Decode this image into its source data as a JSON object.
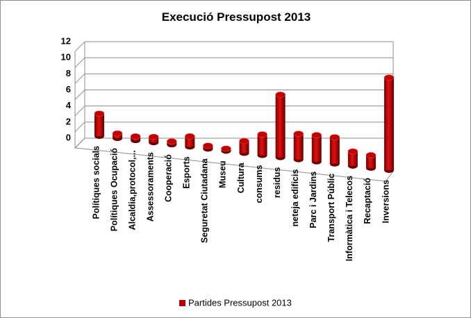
{
  "chart_data": {
    "type": "bar3d",
    "title": "Execució Pressupost 2013",
    "categories": [
      "Polítiques socials",
      "Polítiques Ocupació",
      "Alcaldia,protocol,...",
      "Assessoraments",
      "Cooperació",
      "Esports",
      "Seguretat Ciutadana",
      "Museu",
      "Cultura",
      "consums",
      "residus",
      "neteja edificis",
      "Parc i Jardins",
      "Transport Públic",
      "Informàtica i Telecos",
      "Recaptació",
      "Inversions"
    ],
    "series": [
      {
        "name": "Partides Pressupost 2013",
        "color": "#c00000",
        "values": [
          2.8,
          0.6,
          0.5,
          0.7,
          0.4,
          1.3,
          0.4,
          0.3,
          1.5,
          2.6,
          7.8,
          3.2,
          3.3,
          3.3,
          1.8,
          1.6,
          11.5
        ]
      }
    ],
    "ylim": [
      0,
      12
    ],
    "yticks": [
      0,
      2,
      4,
      6,
      8,
      10,
      12
    ],
    "grid": true,
    "legend": "bottom"
  }
}
